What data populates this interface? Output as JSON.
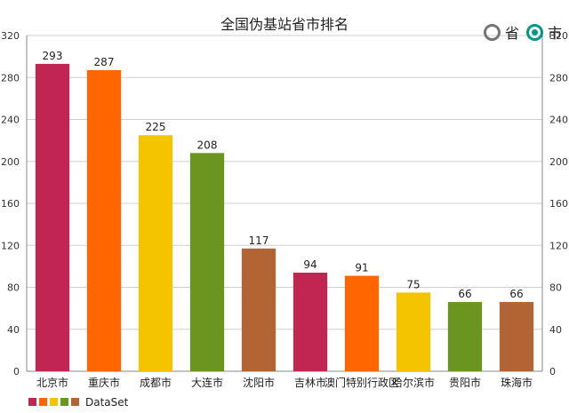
{
  "radio_options": [
    {
      "label": "省",
      "selected": false
    },
    {
      "label": "市",
      "selected": true
    }
  ],
  "accent_color": "#009688",
  "chart_data": {
    "type": "bar",
    "title": "全国伪基站省市排名",
    "categories": [
      "北京市",
      "重庆市",
      "成都市",
      "大连市",
      "沈阳市",
      "吉林市",
      "澳门特别行政区",
      "哈尔滨市",
      "贵阳市",
      "珠海市"
    ],
    "values": [
      293,
      287,
      225,
      208,
      117,
      94,
      91,
      75,
      66,
      66
    ],
    "colors": [
      "#c12552",
      "#ff6600",
      "#f5c400",
      "#6a961f",
      "#b36435",
      "#c12552",
      "#ff6600",
      "#f5c400",
      "#6a961f",
      "#b36435"
    ],
    "ylim": [
      0,
      320
    ],
    "yticks": [
      0,
      40,
      80,
      120,
      160,
      200,
      240,
      280,
      320
    ],
    "grid": true,
    "legend": {
      "label": "DataSet",
      "colors": [
        "#c12552",
        "#ff6600",
        "#f5c400",
        "#6a961f",
        "#b36435"
      ],
      "position": "bottom-left"
    }
  }
}
